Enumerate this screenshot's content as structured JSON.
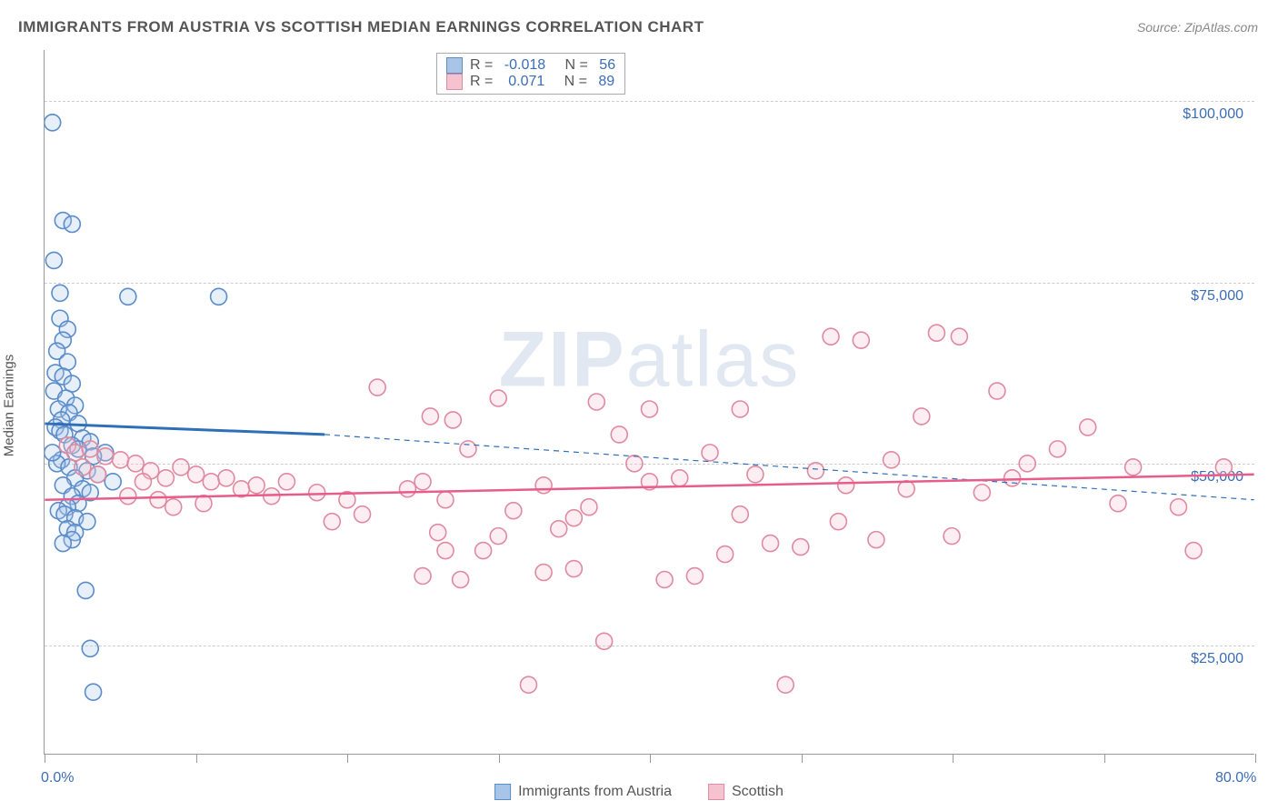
{
  "chart": {
    "type": "scatter",
    "title": "IMMIGRANTS FROM AUSTRIA VS SCOTTISH MEDIAN EARNINGS CORRELATION CHART",
    "source": "Source: ZipAtlas.com",
    "watermark": "ZIPatlas",
    "ylabel": "Median Earnings",
    "background_color": "#ffffff",
    "grid_color": "#cccccc",
    "axis_color": "#999999",
    "tick_label_color": "#3b6db5",
    "text_color": "#555555",
    "title_fontsize": 17,
    "label_fontsize": 15,
    "tick_fontsize": 16,
    "xlim": [
      0,
      80
    ],
    "ylim": [
      10000,
      107000
    ],
    "x_tick_positions": [
      0,
      10,
      20,
      30,
      40,
      50,
      60,
      70,
      80
    ],
    "x_tick_labels": {
      "0": "0.0%",
      "80": "80.0%"
    },
    "y_ticks": [
      25000,
      50000,
      75000,
      100000
    ],
    "y_tick_labels": [
      "$25,000",
      "$50,000",
      "$75,000",
      "$100,000"
    ],
    "marker_radius": 9,
    "marker_stroke_width": 1.6,
    "marker_fill_opacity": 0.28,
    "series": [
      {
        "name": "Immigrants from Austria",
        "color_stroke": "#5a8cc9",
        "color_fill": "#a8c5e8",
        "R": "-0.018",
        "N": "56",
        "trend": {
          "solid": {
            "x1": 0,
            "y1": 55500,
            "x2": 18.5,
            "y2": 54000,
            "width": 3,
            "color": "#2f6fb8"
          },
          "dash": {
            "x1": 18.5,
            "y1": 54000,
            "x2": 80,
            "y2": 45000,
            "width": 1.2,
            "color": "#2f6fb8",
            "dash": "6,5"
          }
        },
        "points": [
          [
            0.5,
            97000
          ],
          [
            1.2,
            83500
          ],
          [
            1.8,
            83000
          ],
          [
            0.6,
            78000
          ],
          [
            1.0,
            73500
          ],
          [
            5.5,
            73000
          ],
          [
            11.5,
            73000
          ],
          [
            1.0,
            70000
          ],
          [
            1.5,
            68500
          ],
          [
            1.2,
            67000
          ],
          [
            0.8,
            65500
          ],
          [
            1.5,
            64000
          ],
          [
            0.7,
            62500
          ],
          [
            1.2,
            62000
          ],
          [
            1.8,
            61000
          ],
          [
            0.6,
            60000
          ],
          [
            1.4,
            59000
          ],
          [
            2.0,
            58000
          ],
          [
            0.9,
            57500
          ],
          [
            1.6,
            57000
          ],
          [
            1.1,
            56000
          ],
          [
            2.2,
            55500
          ],
          [
            0.7,
            55000
          ],
          [
            1.0,
            54500
          ],
          [
            1.3,
            54000
          ],
          [
            2.5,
            53500
          ],
          [
            3.0,
            53000
          ],
          [
            1.8,
            52500
          ],
          [
            2.2,
            52000
          ],
          [
            4.0,
            51500
          ],
          [
            3.2,
            51000
          ],
          [
            1.1,
            50500
          ],
          [
            0.8,
            50000
          ],
          [
            1.6,
            49500
          ],
          [
            2.8,
            49000
          ],
          [
            3.5,
            48500
          ],
          [
            2.0,
            48000
          ],
          [
            4.5,
            47500
          ],
          [
            1.2,
            47000
          ],
          [
            2.5,
            46500
          ],
          [
            3.0,
            46000
          ],
          [
            1.8,
            45500
          ],
          [
            2.2,
            44500
          ],
          [
            1.5,
            44000
          ],
          [
            0.9,
            43500
          ],
          [
            1.3,
            43000
          ],
          [
            2.0,
            42500
          ],
          [
            2.8,
            42000
          ],
          [
            1.5,
            41000
          ],
          [
            2.0,
            40500
          ],
          [
            1.8,
            39500
          ],
          [
            1.2,
            39000
          ],
          [
            2.7,
            32500
          ],
          [
            3.0,
            24500
          ],
          [
            3.2,
            18500
          ],
          [
            0.5,
            51500
          ]
        ]
      },
      {
        "name": "Scottish",
        "color_stroke": "#e08aa0",
        "color_fill": "#f5c3d0",
        "R": "0.071",
        "N": "89",
        "trend": {
          "solid": {
            "x1": 0,
            "y1": 45000,
            "x2": 80,
            "y2": 48500,
            "width": 2.5,
            "color": "#e75c8a"
          },
          "dash": null
        },
        "points": [
          [
            1.5,
            52500
          ],
          [
            2.0,
            51500
          ],
          [
            3.0,
            52000
          ],
          [
            4.0,
            51000
          ],
          [
            5.0,
            50500
          ],
          [
            2.5,
            49500
          ],
          [
            3.5,
            48500
          ],
          [
            6.0,
            50000
          ],
          [
            7.0,
            49000
          ],
          [
            8.0,
            48000
          ],
          [
            6.5,
            47500
          ],
          [
            9.0,
            49500
          ],
          [
            10.0,
            48500
          ],
          [
            11.0,
            47500
          ],
          [
            12.0,
            48000
          ],
          [
            5.5,
            45500
          ],
          [
            7.5,
            45000
          ],
          [
            8.5,
            44000
          ],
          [
            10.5,
            44500
          ],
          [
            13.0,
            46500
          ],
          [
            14.0,
            47000
          ],
          [
            15.0,
            45500
          ],
          [
            16.0,
            47500
          ],
          [
            18.0,
            46000
          ],
          [
            19.0,
            42000
          ],
          [
            20.0,
            45000
          ],
          [
            21.0,
            43000
          ],
          [
            22.0,
            60500
          ],
          [
            24.0,
            46500
          ],
          [
            25.0,
            47500
          ],
          [
            25.5,
            56500
          ],
          [
            25.0,
            34500
          ],
          [
            26.0,
            40500
          ],
          [
            26.5,
            45000
          ],
          [
            26.5,
            38000
          ],
          [
            27.0,
            56000
          ],
          [
            27.5,
            34000
          ],
          [
            28.0,
            52000
          ],
          [
            29.0,
            38000
          ],
          [
            30.0,
            59000
          ],
          [
            30.0,
            40000
          ],
          [
            31.0,
            43500
          ],
          [
            32.0,
            19500
          ],
          [
            33.0,
            47000
          ],
          [
            33.0,
            35000
          ],
          [
            34.0,
            41000
          ],
          [
            35.0,
            42500
          ],
          [
            35.0,
            35500
          ],
          [
            36.0,
            44000
          ],
          [
            36.5,
            58500
          ],
          [
            37.0,
            25500
          ],
          [
            38.0,
            54000
          ],
          [
            39.0,
            50000
          ],
          [
            40.0,
            57500
          ],
          [
            40.0,
            47500
          ],
          [
            41.0,
            34000
          ],
          [
            42.0,
            48000
          ],
          [
            43.0,
            34500
          ],
          [
            44.0,
            51500
          ],
          [
            45.0,
            37500
          ],
          [
            46.0,
            43000
          ],
          [
            46.0,
            57500
          ],
          [
            47.0,
            48500
          ],
          [
            48.0,
            39000
          ],
          [
            49.0,
            19500
          ],
          [
            50.0,
            38500
          ],
          [
            51.0,
            49000
          ],
          [
            52.0,
            67500
          ],
          [
            52.5,
            42000
          ],
          [
            53.0,
            47000
          ],
          [
            54.0,
            67000
          ],
          [
            55.0,
            39500
          ],
          [
            56.0,
            50500
          ],
          [
            57.0,
            46500
          ],
          [
            58.0,
            56500
          ],
          [
            59.0,
            68000
          ],
          [
            60.0,
            40000
          ],
          [
            60.5,
            67500
          ],
          [
            62.0,
            46000
          ],
          [
            63.0,
            60000
          ],
          [
            64.0,
            48000
          ],
          [
            65.0,
            50000
          ],
          [
            67.0,
            52000
          ],
          [
            69.0,
            55000
          ],
          [
            71.0,
            44500
          ],
          [
            72.0,
            49500
          ],
          [
            75.0,
            44000
          ],
          [
            76.0,
            38000
          ],
          [
            78.0,
            49500
          ]
        ]
      }
    ],
    "top_legend": {
      "rows": [
        {
          "swatch_fill": "#a8c5e8",
          "swatch_stroke": "#5a8cc9",
          "r_label": "R = ",
          "r_val": "-0.018",
          "n_label": "   N = ",
          "n_val": "56"
        },
        {
          "swatch_fill": "#f5c3d0",
          "swatch_stroke": "#e08aa0",
          "r_label": "R = ",
          "r_val": " 0.071",
          "n_label": "   N = ",
          "n_val": "89"
        }
      ]
    },
    "bottom_legend": [
      {
        "swatch_fill": "#a8c5e8",
        "swatch_stroke": "#5a8cc9",
        "label": "Immigrants from Austria"
      },
      {
        "swatch_fill": "#f5c3d0",
        "swatch_stroke": "#e08aa0",
        "label": "Scottish"
      }
    ]
  }
}
